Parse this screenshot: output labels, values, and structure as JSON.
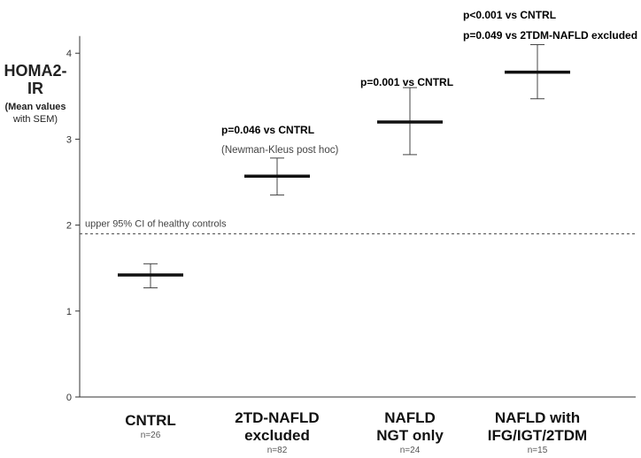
{
  "chart_data": {
    "type": "errorbar",
    "ylabel_main": "HOMA2-IR",
    "ylabel_sub_bold": "(Mean values",
    "ylabel_sub_rest": " with SEM)",
    "ylim": [
      0,
      4.2
    ],
    "yticks": [
      "0",
      "1",
      "2",
      "3",
      "4"
    ],
    "grid": false,
    "categories": [
      {
        "name_lines": [
          "CNTRL"
        ],
        "n": "n=26",
        "mean": 1.42,
        "lower": 1.27,
        "upper": 1.55
      },
      {
        "name_lines": [
          "2TD-NAFLD",
          "excluded"
        ],
        "n": "n=82",
        "mean": 2.57,
        "lower": 2.35,
        "upper": 2.78
      },
      {
        "name_lines": [
          "NAFLD",
          "NGT only"
        ],
        "n": "n=24",
        "mean": 3.2,
        "lower": 2.82,
        "upper": 3.6
      },
      {
        "name_lines": [
          "NAFLD with",
          "IFG/IGT/2TDM"
        ],
        "n": "n=15",
        "mean": 3.78,
        "lower": 3.47,
        "upper": 4.1
      }
    ],
    "reference_line": {
      "value": 1.9,
      "label": "upper 95% CI of healthy controls"
    },
    "annotations": {
      "a1": "p=0.046 vs CNTRL",
      "a2": "(Newman-Kleus post hoc)",
      "a3": "p=0.001 vs CNTRL",
      "a4": "p<0.001 vs CNTRL",
      "a5": "p=0.049 vs 2TDM-NAFLD excluded"
    }
  }
}
